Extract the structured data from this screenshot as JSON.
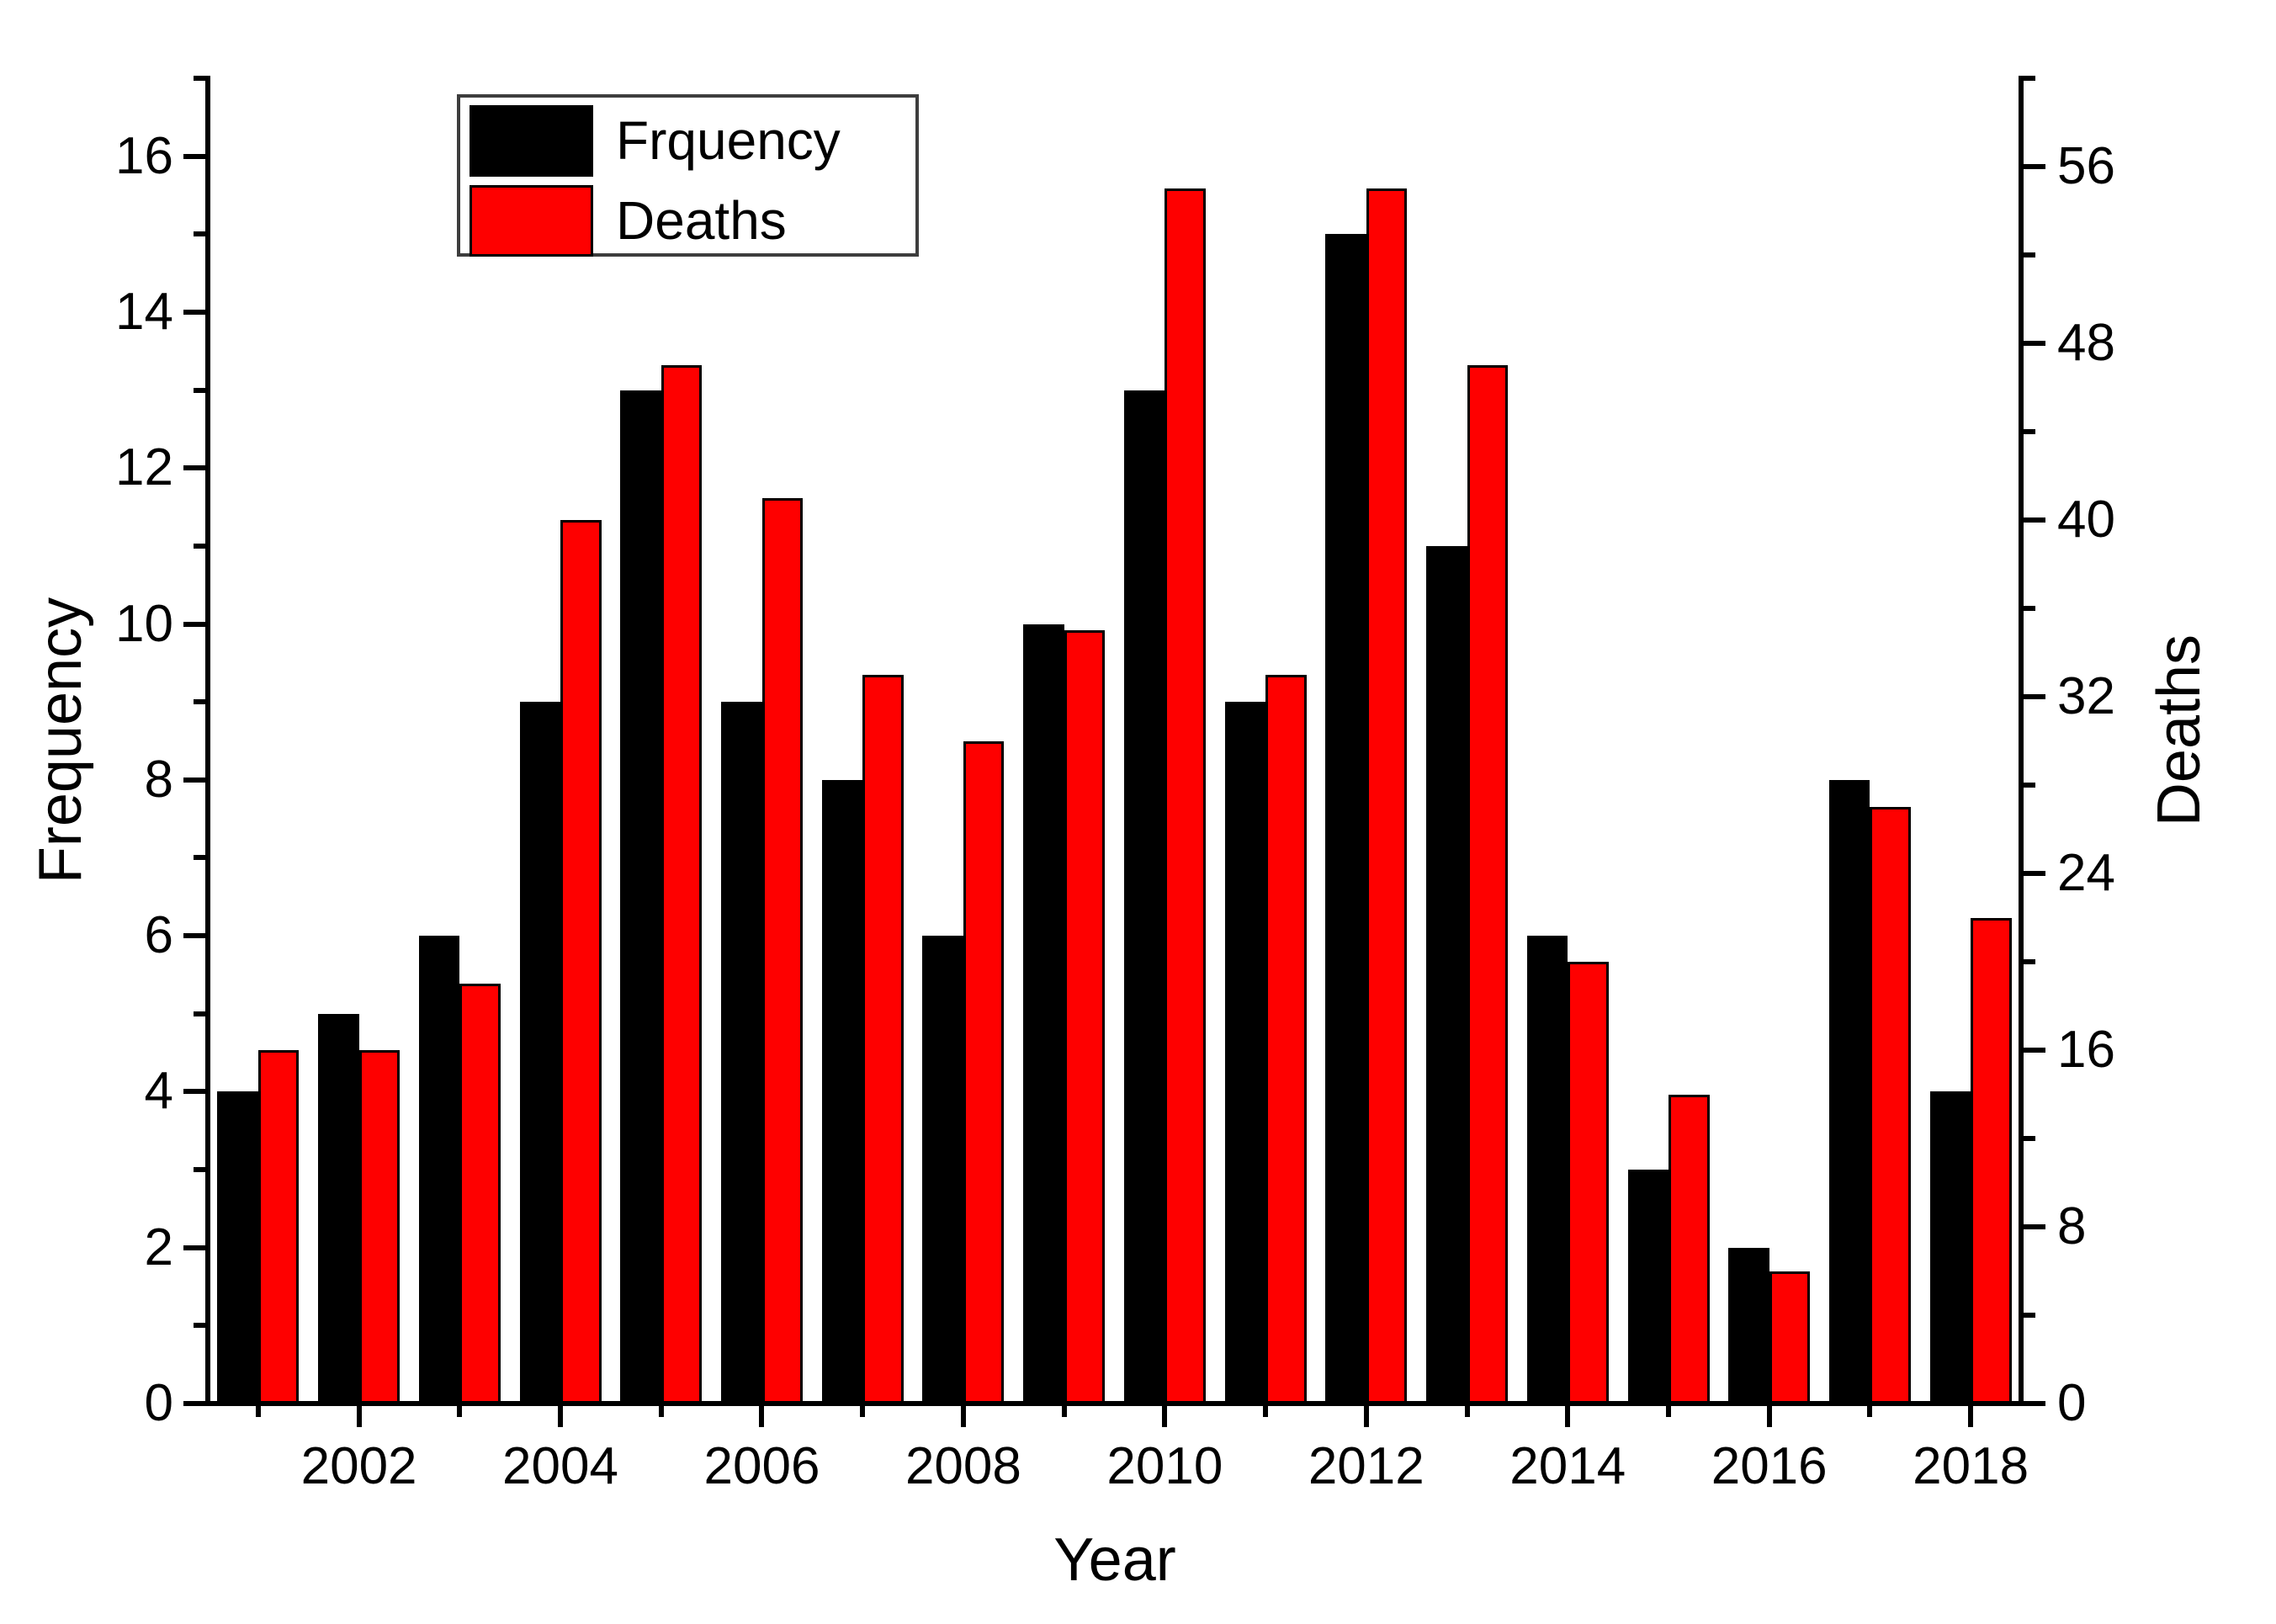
{
  "chart_data": {
    "type": "bar",
    "categories": [
      2001,
      2002,
      2003,
      2004,
      2005,
      2006,
      2007,
      2008,
      2009,
      2010,
      2011,
      2012,
      2013,
      2014,
      2015,
      2016,
      2017,
      2018
    ],
    "series": [
      {
        "name": "Frquency",
        "axis": "left",
        "color": "#000000",
        "values": [
          4,
          5,
          6,
          9,
          13,
          9,
          8,
          6,
          10,
          13,
          9,
          15,
          11,
          6,
          3,
          2,
          8,
          4
        ]
      },
      {
        "name": "Deaths",
        "axis": "right",
        "color": "#fe0000",
        "values": [
          16,
          16,
          19,
          40,
          47,
          41,
          33,
          30,
          35,
          55,
          33,
          55,
          47,
          20,
          14,
          6,
          27,
          22
        ]
      }
    ],
    "x_axis": {
      "label": "Year",
      "labeled_ticks": [
        2002,
        2004,
        2006,
        2008,
        2010,
        2012,
        2014,
        2016,
        2018
      ],
      "minor_ticks_every_year": true
    },
    "y_left": {
      "label": "Frequency",
      "min": 0,
      "max": 17,
      "major_step": 2,
      "minor_step": 1,
      "labeled_ticks": [
        0,
        2,
        4,
        6,
        8,
        10,
        12,
        14,
        16
      ]
    },
    "y_right": {
      "label": "Deaths",
      "min": 0,
      "max": 60,
      "major_step": 8,
      "minor_step": 4,
      "labeled_ticks": [
        0,
        8,
        16,
        24,
        32,
        40,
        48,
        56
      ]
    },
    "legend": {
      "position": "top-left",
      "entries": [
        {
          "label": "Frquency",
          "color": "#000000"
        },
        {
          "label": "Deaths",
          "color": "#fe0000"
        }
      ]
    },
    "grid": false,
    "background": "#ffffff"
  }
}
